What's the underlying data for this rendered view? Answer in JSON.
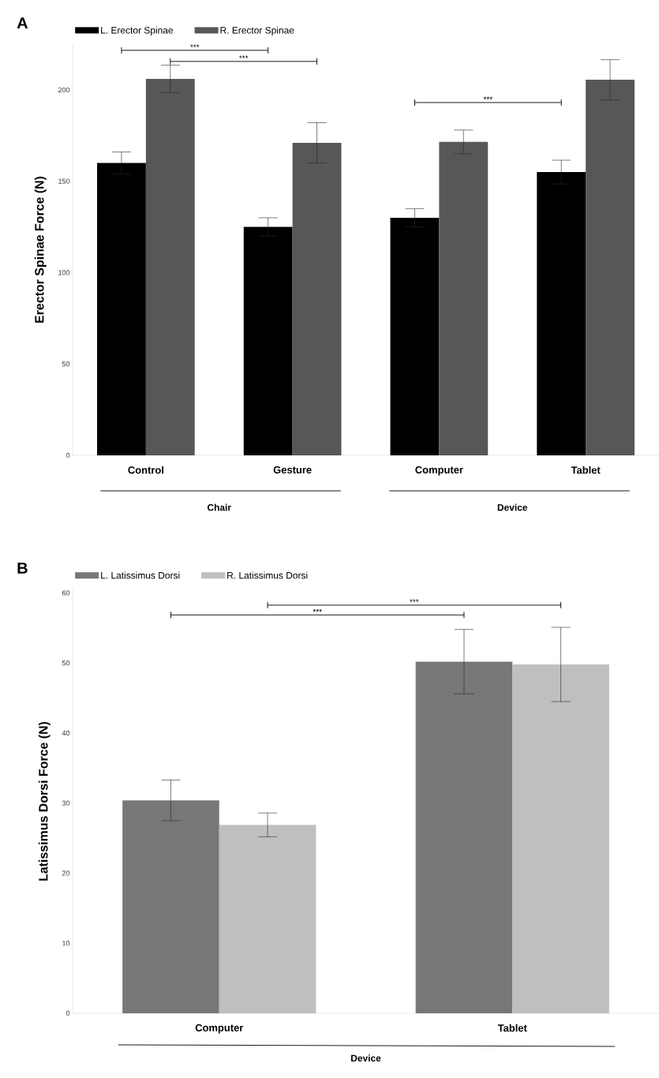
{
  "chart_data": [
    {
      "type": "bar",
      "title": "A",
      "ylabel": "Erector Spinae Force (N)",
      "categories": [
        "Control",
        "Gesture",
        "Computer",
        "Tablet"
      ],
      "series": [
        {
          "name": "L. Erector Spinae",
          "color": "#000000",
          "values": [
            160,
            125,
            130,
            155
          ],
          "errors": [
            6,
            5,
            5,
            6.5
          ]
        },
        {
          "name": "R. Erector Spinae",
          "color": "#575757",
          "values": [
            206,
            171,
            171.5,
            205.5
          ],
          "errors": [
            7.5,
            11,
            6.5,
            11
          ]
        }
      ],
      "ylim": [
        0,
        225
      ],
      "yticks": [
        0,
        50,
        100,
        150,
        200
      ],
      "grid": false,
      "legend": "top left",
      "annotations": [
        "***",
        "***",
        "***",
        "Chair",
        "Device"
      ]
    },
    {
      "type": "bar",
      "title": "B",
      "ylabel": "Latissimus Dorsi Force (N)",
      "xlabel": "Device",
      "categories": [
        "Computer",
        "Tablet"
      ],
      "series": [
        {
          "name": "L. Latissimus Dorsi",
          "color": "#777777",
          "values": [
            30.4,
            50.2
          ],
          "errors": [
            2.9,
            4.6
          ]
        },
        {
          "name": "R. Latissimus Dorsi",
          "color": "#bfbfbf",
          "values": [
            26.9,
            49.8
          ],
          "errors": [
            1.7,
            5.3
          ]
        }
      ],
      "ylim": [
        0,
        60.5
      ],
      "yticks": [
        0,
        10,
        20,
        30,
        40,
        50,
        60
      ],
      "grid": false,
      "legend": "top left",
      "annotations": [
        "***",
        "***"
      ]
    }
  ]
}
